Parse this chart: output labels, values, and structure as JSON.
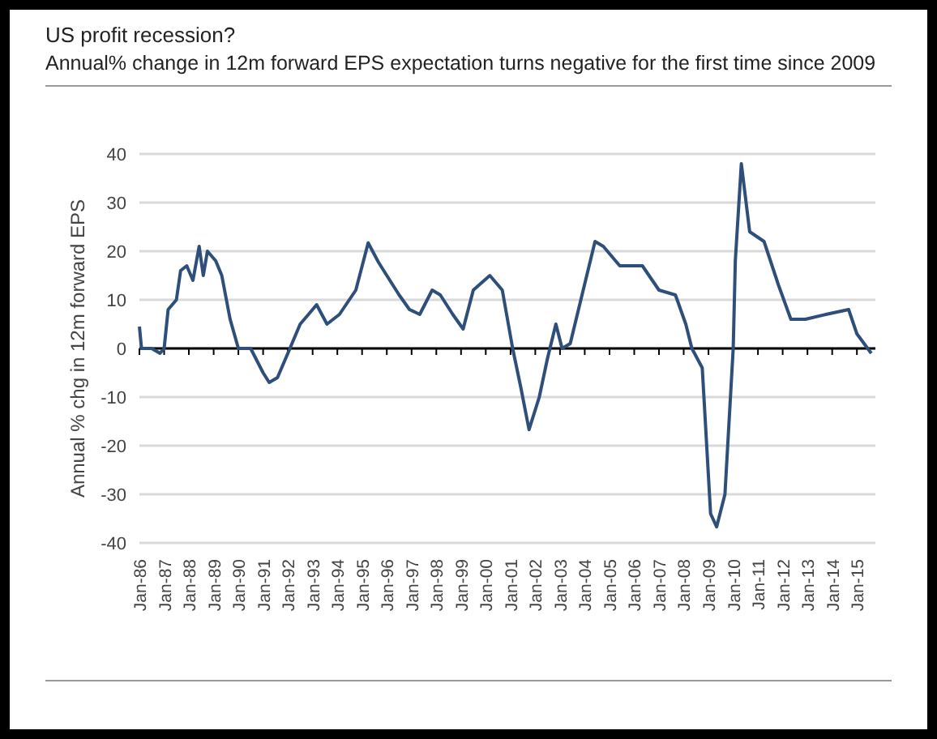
{
  "chart_data": {
    "type": "line",
    "title": "US profit recession?",
    "subtitle": "Annual% change in 12m forward EPS expectation turns negative for the first time since 2009",
    "ylabel": "Annual % chg in 12m forward EPS",
    "x": [
      "1986-01",
      "1986-02",
      "1986-07",
      "1986-11",
      "1987-01",
      "1987-03",
      "1987-07",
      "1987-09",
      "1987-12",
      "1988-03",
      "1988-06",
      "1988-08",
      "1988-10",
      "1989-02",
      "1989-05",
      "1989-09",
      "1990-01",
      "1990-07",
      "1991-01",
      "1991-04",
      "1991-08",
      "1992-02",
      "1992-07",
      "1992-11",
      "1993-03",
      "1993-08",
      "1994-02",
      "1994-10",
      "1995-04",
      "1995-09",
      "1996-01",
      "1996-07",
      "1996-12",
      "1997-05",
      "1997-11",
      "1998-03",
      "1998-09",
      "1999-02",
      "1999-07",
      "2000-03",
      "2000-09",
      "2001-02",
      "2001-06",
      "2001-10",
      "2002-03",
      "2002-07",
      "2002-11",
      "2003-02",
      "2003-06",
      "2003-10",
      "2004-06",
      "2004-10",
      "2005-06",
      "2006-05",
      "2007-01",
      "2007-09",
      "2008-02",
      "2008-05",
      "2008-10",
      "2009-02",
      "2009-05",
      "2009-09",
      "2010-01",
      "2010-02",
      "2010-05",
      "2010-09",
      "2011-04",
      "2011-11",
      "2012-05",
      "2012-12",
      "2013-10",
      "2014-09",
      "2015-01",
      "2015-08"
    ],
    "series": [
      {
        "color": "#2e4f7a",
        "values": [
          4.5,
          0,
          0,
          -1,
          0,
          8,
          10,
          16,
          17,
          14,
          21,
          15,
          20,
          18,
          15,
          6,
          0,
          0,
          -5,
          -7,
          -6,
          0,
          5,
          7,
          9,
          5,
          7,
          12,
          21.7,
          17.7,
          15,
          11,
          8,
          7,
          12,
          11,
          7,
          4,
          12,
          15,
          12,
          0,
          -8,
          -16.7,
          -10,
          -2,
          5,
          0,
          1,
          8,
          22,
          21,
          17,
          17,
          12,
          11,
          5,
          0,
          -4,
          -34,
          -36.7,
          -30,
          0,
          18,
          38,
          24,
          22,
          13,
          6,
          6,
          7,
          8,
          3,
          -1
        ]
      }
    ],
    "xlim": [
      "1986-01",
      "2015-10"
    ],
    "xticks": [
      {
        "value": "1986-01",
        "label": "Jan-86"
      },
      {
        "value": "1987-01",
        "label": "Jan-87"
      },
      {
        "value": "1988-01",
        "label": "Jan-88"
      },
      {
        "value": "1989-01",
        "label": "Jan-89"
      },
      {
        "value": "1990-01",
        "label": "Jan-90"
      },
      {
        "value": "1991-01",
        "label": "Jan-91"
      },
      {
        "value": "1992-01",
        "label": "Jan-92"
      },
      {
        "value": "1993-01",
        "label": "Jan-93"
      },
      {
        "value": "1994-01",
        "label": "Jan-94"
      },
      {
        "value": "1995-01",
        "label": "Jan-95"
      },
      {
        "value": "1996-01",
        "label": "Jan-96"
      },
      {
        "value": "1997-01",
        "label": "Jan-97"
      },
      {
        "value": "1998-01",
        "label": "Jan-98"
      },
      {
        "value": "1999-01",
        "label": "Jan-99"
      },
      {
        "value": "2000-01",
        "label": "Jan-00"
      },
      {
        "value": "2001-01",
        "label": "Jan-01"
      },
      {
        "value": "2002-01",
        "label": "Jan-02"
      },
      {
        "value": "2003-01",
        "label": "Jan-03"
      },
      {
        "value": "2004-01",
        "label": "Jan-04"
      },
      {
        "value": "2005-01",
        "label": "Jan-05"
      },
      {
        "value": "2006-01",
        "label": "Jan-06"
      },
      {
        "value": "2007-01",
        "label": "Jan-07"
      },
      {
        "value": "2008-01",
        "label": "Jan-08"
      },
      {
        "value": "2009-01",
        "label": "Jan-09"
      },
      {
        "value": "2010-01",
        "label": "Jan-10"
      },
      {
        "value": "2011-01",
        "label": "Jan-11"
      },
      {
        "value": "2012-01",
        "label": "Jan-12"
      },
      {
        "value": "2013-01",
        "label": "Jan-13"
      },
      {
        "value": "2014-01",
        "label": "Jan-14"
      },
      {
        "value": "2015-01",
        "label": "Jan-15"
      }
    ],
    "ylim": [
      -40,
      40
    ],
    "yticks": [
      -40,
      -30,
      -20,
      -10,
      0,
      10,
      20,
      30,
      40
    ],
    "grid": "y",
    "marker": "none",
    "line_style": "solid"
  }
}
